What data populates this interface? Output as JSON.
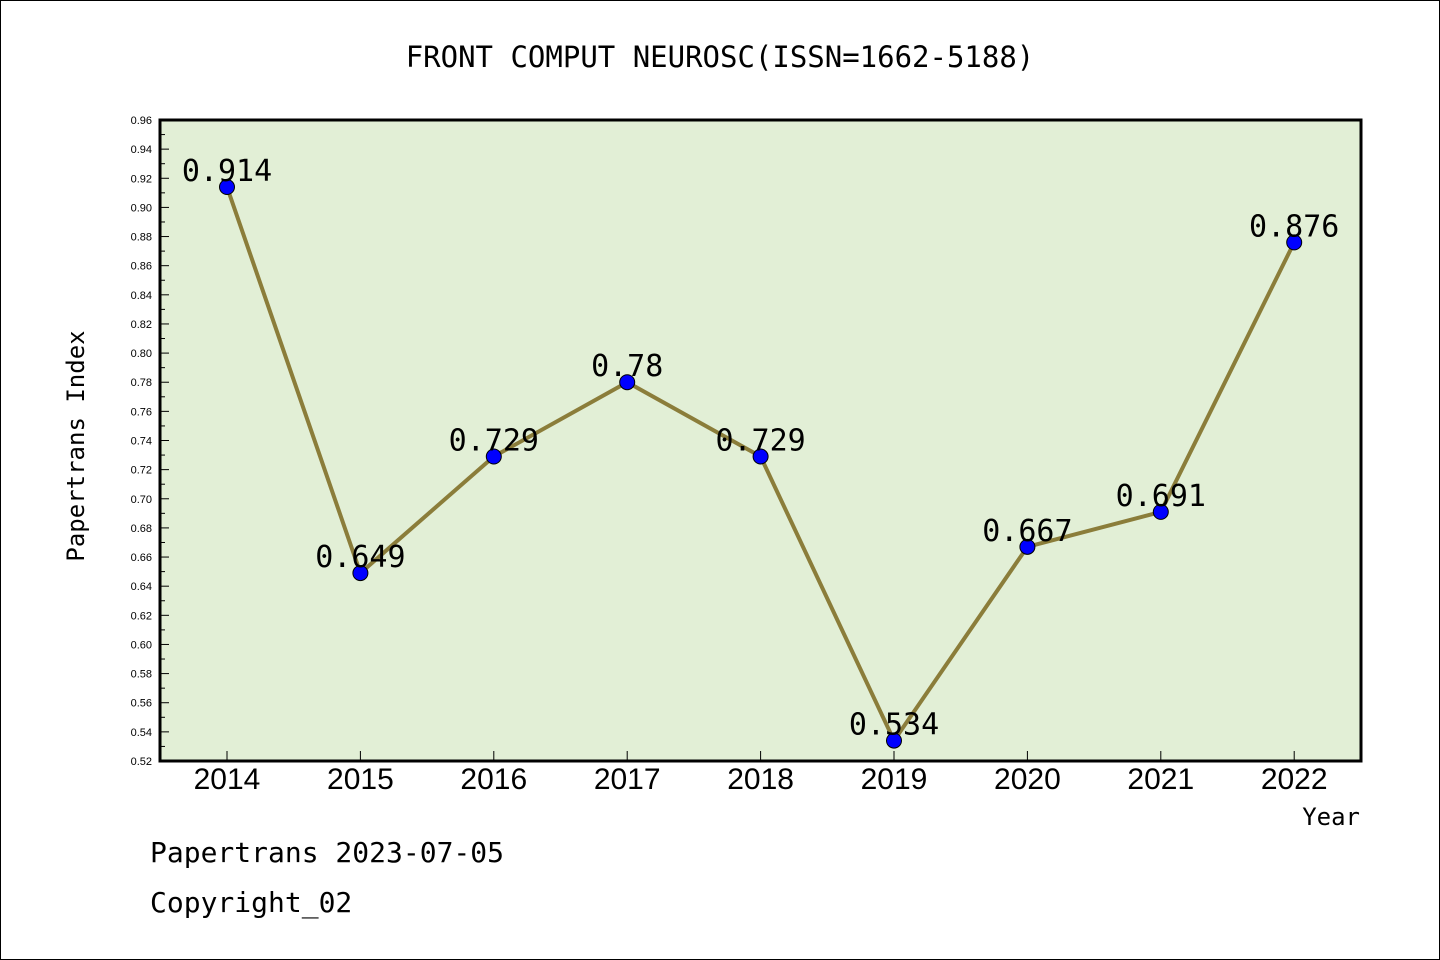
{
  "chart_data": {
    "type": "line",
    "title": "FRONT COMPUT NEUROSC(ISSN=1662-5188)",
    "xlabel": "Year",
    "ylabel": "Papertrans Index",
    "categories": [
      "2014",
      "2015",
      "2016",
      "2017",
      "2018",
      "2019",
      "2020",
      "2021",
      "2022"
    ],
    "series": [
      {
        "values": [
          0.914,
          0.649,
          0.729,
          0.78,
          0.729,
          0.534,
          0.667,
          0.691,
          0.876
        ],
        "labels": [
          "0.914",
          "0.649",
          "0.729",
          "0.78",
          "0.729",
          "0.534",
          "0.667",
          "0.691",
          "0.876"
        ]
      }
    ],
    "ylim": [
      0.52,
      0.96
    ],
    "yticks": [
      "0.52",
      "0.54",
      "0.56",
      "0.58",
      "0.60",
      "0.62",
      "0.64",
      "0.66",
      "0.68",
      "0.70",
      "0.72",
      "0.74",
      "0.76",
      "0.78",
      "0.80",
      "0.82",
      "0.84",
      "0.86",
      "0.88",
      "0.90",
      "0.92",
      "0.94",
      "0.96"
    ],
    "grid": false,
    "legend": "none",
    "colors": {
      "plot_background": "#e2efd6",
      "line": "#8b7d3a",
      "marker": "#0000ff"
    }
  },
  "footer": {
    "line1": "Papertrans 2023-07-05",
    "line2": "Copyright_02"
  }
}
